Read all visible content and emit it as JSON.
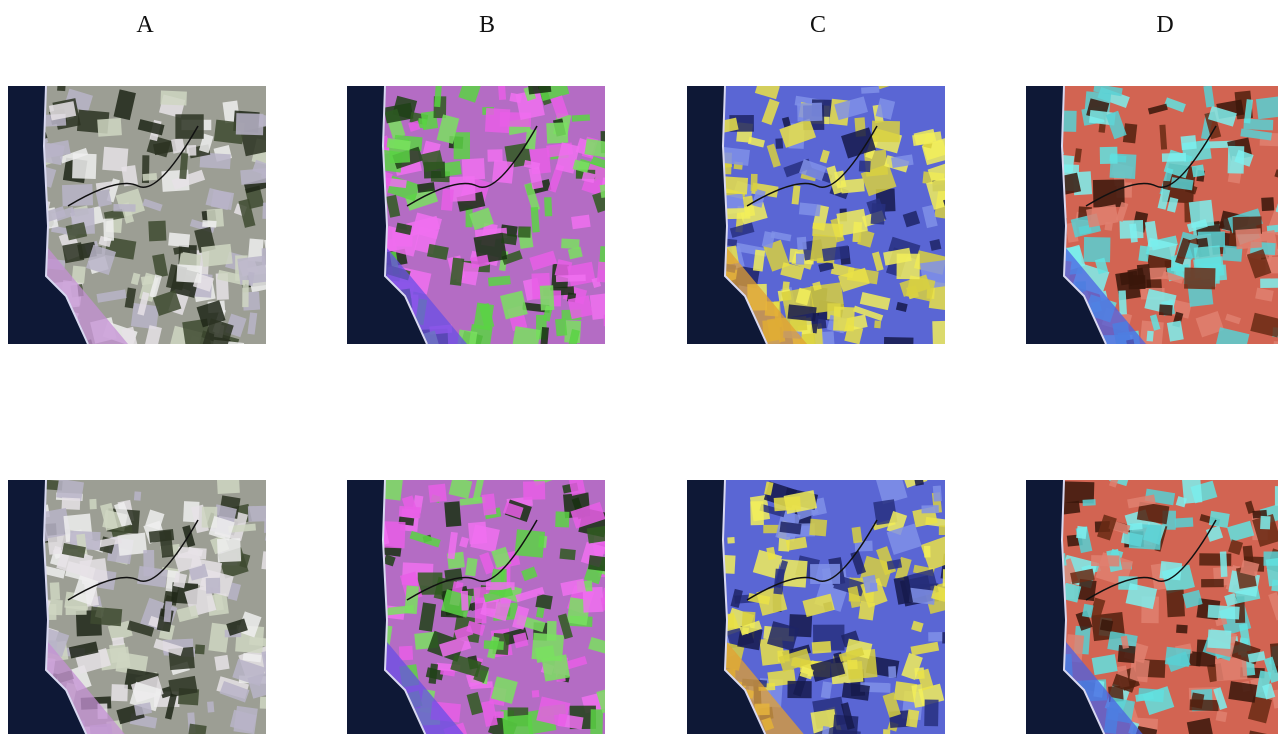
{
  "columns": [
    "A",
    "B",
    "C",
    "D"
  ]
}
